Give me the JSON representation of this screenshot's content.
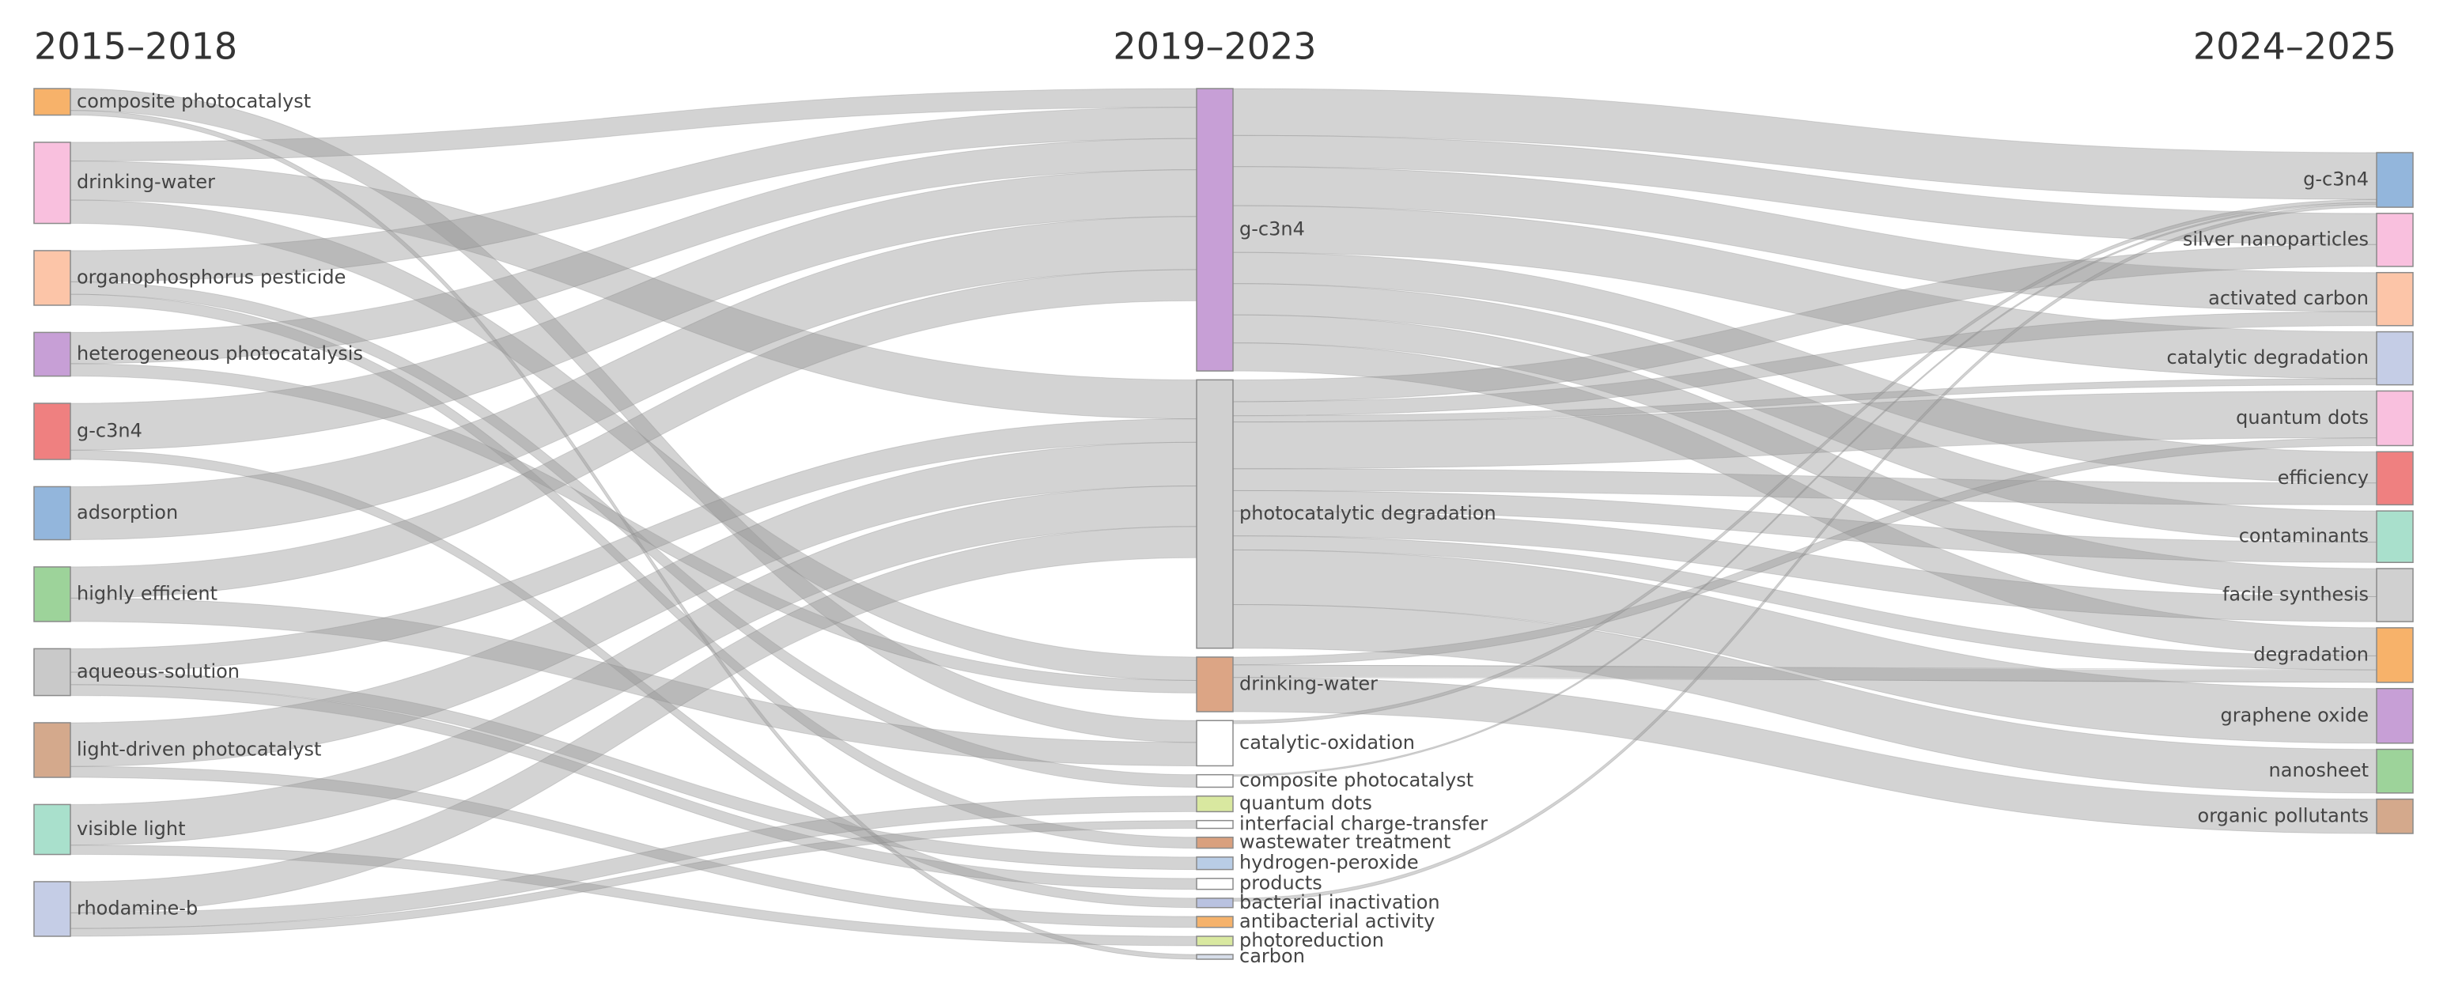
{
  "chart_data": {
    "type": "sankey",
    "columns": [
      {
        "title": "2015–2018",
        "nodes": [
          {
            "label": "composite photocatalyst",
            "color": "#f7b26a",
            "links": [
              {
                "target": "catalytic-oxidation",
                "value": 14
              },
              {
                "target": "carbon",
                "value": 3
              }
            ]
          },
          {
            "label": "drinking-water",
            "color": "#f9c0de",
            "links": [
              {
                "target": "g-c3n4",
                "value": 12
              },
              {
                "target": "photocatalytic degradation",
                "value": 25
              },
              {
                "target": "drinking-water",
                "value": 15
              }
            ]
          },
          {
            "label": "organophosphorus pesticide",
            "color": "#fcc5a8",
            "links": [
              {
                "target": "g-c3n4",
                "value": 20
              },
              {
                "target": "composite photocatalyst",
                "value": 8
              },
              {
                "target": "wastewater treatment",
                "value": 7
              }
            ]
          },
          {
            "label": "heterogeneous photocatalysis",
            "color": "#c79fd6",
            "links": [
              {
                "target": "g-c3n4",
                "value": 20
              },
              {
                "target": "drinking-water",
                "value": 8
              }
            ]
          },
          {
            "label": "g-c3n4",
            "color": "#ef8080",
            "links": [
              {
                "target": "g-c3n4",
                "value": 30
              },
              {
                "target": "bacterial inactivation",
                "value": 6
              }
            ]
          },
          {
            "label": "adsorption",
            "color": "#93b6dc",
            "links": [
              {
                "target": "g-c3n4",
                "value": 34
              }
            ]
          },
          {
            "label": "highly efficient",
            "color": "#9dd39a",
            "links": [
              {
                "target": "g-c3n4",
                "value": 20
              },
              {
                "target": "catalytic-oxidation",
                "value": 15
              }
            ]
          },
          {
            "label": "aqueous-solution",
            "color": "#c9c9c9",
            "links": [
              {
                "target": "photocatalytic degradation",
                "value": 15
              },
              {
                "target": "hydrogen-peroxide",
                "value": 8
              },
              {
                "target": "products",
                "value": 7
              }
            ]
          },
          {
            "label": "light-driven photocatalyst",
            "color": "#d4a98c",
            "links": [
              {
                "target": "photocatalytic degradation",
                "value": 28
              },
              {
                "target": "antibacterial activity",
                "value": 7
              }
            ]
          },
          {
            "label": "visible light",
            "color": "#a9e0cc",
            "links": [
              {
                "target": "photocatalytic degradation",
                "value": 26
              },
              {
                "target": "photoreduction",
                "value": 6
              }
            ]
          },
          {
            "label": "rhodamine-b",
            "color": "#c5cde6",
            "links": [
              {
                "target": "photocatalytic degradation",
                "value": 20
              },
              {
                "target": "quantum dots",
                "value": 10
              },
              {
                "target": "interfacial charge-transfer",
                "value": 5
              }
            ]
          }
        ]
      },
      {
        "title": "2019–2023",
        "nodes": [
          {
            "label": "g-c3n4",
            "color": "#c79fd6",
            "links": [
              {
                "target": "g-c3n4",
                "value": 30
              },
              {
                "target": "silver nanoparticles",
                "value": 20
              },
              {
                "target": "activated carbon",
                "value": 25
              },
              {
                "target": "catalytic degradation",
                "value": 30
              },
              {
                "target": "efficiency",
                "value": 20
              },
              {
                "target": "contaminants",
                "value": 20
              },
              {
                "target": "facile synthesis",
                "value": 18
              },
              {
                "target": "degradation",
                "value": 18
              }
            ]
          },
          {
            "label": "photocatalytic degradation",
            "color": "#d0d0d0",
            "links": [
              {
                "target": "silver nanoparticles",
                "value": 14
              },
              {
                "target": "activated carbon",
                "value": 9
              },
              {
                "target": "catalytic degradation",
                "value": 4
              },
              {
                "target": "quantum dots",
                "value": 30
              },
              {
                "target": "efficiency",
                "value": 14
              },
              {
                "target": "contaminants",
                "value": 13
              },
              {
                "target": "facile synthesis",
                "value": 16
              },
              {
                "target": "degradation",
                "value": 9
              },
              {
                "target": "graphene oxide",
                "value": 35
              },
              {
                "target": "nanosheet",
                "value": 28
              }
            ]
          },
          {
            "label": "drinking-water",
            "color": "#dca585",
            "links": [
              {
                "target": "quantum dots",
                "value": 5
              },
              {
                "target": "degradation",
                "value": 8
              },
              {
                "target": "organic pollutants",
                "value": 22
              }
            ]
          },
          {
            "label": "catalytic-oxidation",
            "color": "#ffffff",
            "links": [
              {
                "target": "g-c3n4",
                "value": 2
              }
            ]
          },
          {
            "label": "composite photocatalyst",
            "color": "#ffffff",
            "links": [
              {
                "target": "g-c3n4",
                "value": 1
              }
            ]
          },
          {
            "label": "quantum dots",
            "color": "#d9e8a0",
            "links": []
          },
          {
            "label": "interfacial charge-transfer",
            "color": "#ffffff",
            "links": []
          },
          {
            "label": "wastewater treatment",
            "color": "#d9a07e",
            "links": []
          },
          {
            "label": "hydrogen-peroxide",
            "color": "#b9cde6",
            "links": []
          },
          {
            "label": "products",
            "color": "#ffffff",
            "links": []
          },
          {
            "label": "bacterial inactivation",
            "color": "#b9c2e0",
            "links": [
              {
                "target": "g-c3n4",
                "value": 2
              }
            ]
          },
          {
            "label": "antibacterial activity",
            "color": "#f5b26b",
            "links": []
          },
          {
            "label": "photoreduction",
            "color": "#d9e8a0",
            "links": []
          },
          {
            "label": "carbon",
            "color": "#d6dde9",
            "links": []
          }
        ]
      },
      {
        "title": "2024–2025",
        "nodes": [
          {
            "label": "g-c3n4",
            "color": "#93b6dc",
            "links": []
          },
          {
            "label": "silver nanoparticles",
            "color": "#f9c0de",
            "links": []
          },
          {
            "label": "activated carbon",
            "color": "#fcc5a8",
            "links": []
          },
          {
            "label": "catalytic degradation",
            "color": "#c5cde6",
            "links": []
          },
          {
            "label": "quantum dots",
            "color": "#f9c0de",
            "links": []
          },
          {
            "label": "efficiency",
            "color": "#ef8080",
            "links": []
          },
          {
            "label": "contaminants",
            "color": "#a9e0cc",
            "links": []
          },
          {
            "label": "facile synthesis",
            "color": "#d0d0d0",
            "links": []
          },
          {
            "label": "degradation",
            "color": "#f7b26a",
            "links": []
          },
          {
            "label": "graphene oxide",
            "color": "#c79fd6",
            "links": []
          },
          {
            "label": "nanosheet",
            "color": "#9dd39a",
            "links": []
          },
          {
            "label": "organic pollutants",
            "color": "#d4a98c",
            "links": []
          }
        ]
      }
    ]
  }
}
